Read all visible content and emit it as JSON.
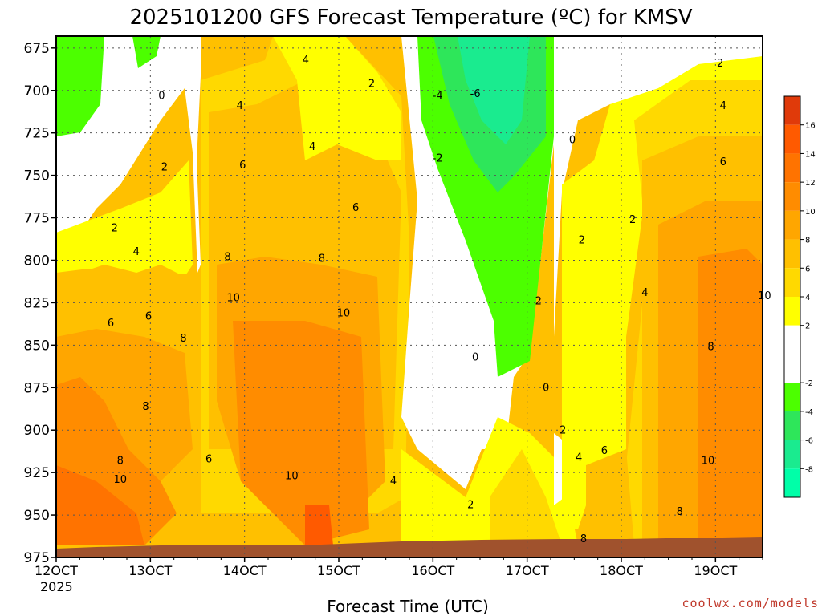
{
  "chart_data": {
    "type": "heatmap",
    "title": "2025101200 GFS Forecast Temperature (ºC) for KMSV",
    "xlabel": "Forecast Time (UTC)",
    "x_ticks": [
      "12OCT",
      "13OCT",
      "14OCT",
      "15OCT",
      "16OCT",
      "17OCT",
      "18OCT",
      "19OCT"
    ],
    "x_year_label": "2025",
    "y_ticks": [
      675,
      700,
      725,
      750,
      775,
      800,
      825,
      850,
      875,
      900,
      925,
      950,
      975
    ],
    "ylim": [
      975,
      668
    ],
    "x_range_days": [
      12.0,
      19.5
    ],
    "colorbar": {
      "labels": [
        16,
        14,
        12,
        10,
        8,
        6,
        4,
        2,
        -2,
        -4,
        -6,
        -8
      ],
      "bands": [
        {
          "min": 16,
          "max": 18,
          "color": "#e03a0a"
        },
        {
          "min": 14,
          "max": 16,
          "color": "#ff5a00"
        },
        {
          "min": 12,
          "max": 14,
          "color": "#ff7300"
        },
        {
          "min": 10,
          "max": 12,
          "color": "#ff8c00"
        },
        {
          "min": 8,
          "max": 10,
          "color": "#ffa600"
        },
        {
          "min": 6,
          "max": 8,
          "color": "#ffc000"
        },
        {
          "min": 4,
          "max": 6,
          "color": "#ffd900"
        },
        {
          "min": 2,
          "max": 4,
          "color": "#ffff00"
        },
        {
          "min": -2,
          "max": 2,
          "color": "#ffffff"
        },
        {
          "min": -4,
          "max": -2,
          "color": "#4cff00"
        },
        {
          "min": -6,
          "max": -4,
          "color": "#2ee65a"
        },
        {
          "min": -8,
          "max": -6,
          "color": "#1aeb8f"
        },
        {
          "min": -10,
          "max": -8,
          "color": "#00ffa8"
        }
      ]
    },
    "contour_labels": [
      {
        "text": "0",
        "day": 13.12,
        "p": 705
      },
      {
        "text": "2",
        "day": 13.15,
        "p": 747
      },
      {
        "text": "2",
        "day": 12.62,
        "p": 783
      },
      {
        "text": "4",
        "day": 12.85,
        "p": 797
      },
      {
        "text": "6",
        "day": 12.58,
        "p": 839
      },
      {
        "text": "6",
        "day": 12.98,
        "p": 835
      },
      {
        "text": "8",
        "day": 13.35,
        "p": 848
      },
      {
        "text": "8",
        "day": 12.95,
        "p": 888
      },
      {
        "text": "8",
        "day": 12.68,
        "p": 920
      },
      {
        "text": "10",
        "day": 12.68,
        "p": 931
      },
      {
        "text": "6",
        "day": 13.62,
        "p": 919
      },
      {
        "text": "4",
        "day": 13.95,
        "p": 711
      },
      {
        "text": "6",
        "day": 13.98,
        "p": 746
      },
      {
        "text": "8",
        "day": 13.82,
        "p": 800
      },
      {
        "text": "8",
        "day": 14.82,
        "p": 801
      },
      {
        "text": "10",
        "day": 13.88,
        "p": 824
      },
      {
        "text": "10",
        "day": 15.05,
        "p": 833
      },
      {
        "text": "10",
        "day": 14.5,
        "p": 929
      },
      {
        "text": "4",
        "day": 14.65,
        "p": 684
      },
      {
        "text": "4",
        "day": 14.72,
        "p": 735
      },
      {
        "text": "6",
        "day": 15.18,
        "p": 771
      },
      {
        "text": "2",
        "day": 15.35,
        "p": 698
      },
      {
        "text": "4",
        "day": 15.58,
        "p": 932
      },
      {
        "text": "-4",
        "day": 16.05,
        "p": 705
      },
      {
        "text": "-6",
        "day": 16.45,
        "p": 704
      },
      {
        "text": "-2",
        "day": 16.05,
        "p": 742
      },
      {
        "text": "0",
        "day": 16.45,
        "p": 859
      },
      {
        "text": "2",
        "day": 16.4,
        "p": 946
      },
      {
        "text": "2",
        "day": 17.12,
        "p": 826
      },
      {
        "text": "0",
        "day": 17.48,
        "p": 731
      },
      {
        "text": "0",
        "day": 17.2,
        "p": 877
      },
      {
        "text": "2",
        "day": 17.38,
        "p": 902
      },
      {
        "text": "4",
        "day": 17.55,
        "p": 918
      },
      {
        "text": "6",
        "day": 17.82,
        "p": 914
      },
      {
        "text": "8",
        "day": 17.6,
        "p": 966
      },
      {
        "text": "2",
        "day": 17.58,
        "p": 790
      },
      {
        "text": "2",
        "day": 18.12,
        "p": 778
      },
      {
        "text": "4",
        "day": 18.25,
        "p": 821
      },
      {
        "text": "2",
        "day": 19.05,
        "p": 686
      },
      {
        "text": "4",
        "day": 19.08,
        "p": 711
      },
      {
        "text": "6",
        "day": 19.08,
        "p": 744
      },
      {
        "text": "8",
        "day": 18.95,
        "p": 853
      },
      {
        "text": "10",
        "day": 18.92,
        "p": 920
      },
      {
        "text": "10",
        "day": 19.52,
        "p": 823
      },
      {
        "text": "8",
        "day": 18.62,
        "p": 950
      }
    ]
  },
  "credit": "coolwx.com/models"
}
